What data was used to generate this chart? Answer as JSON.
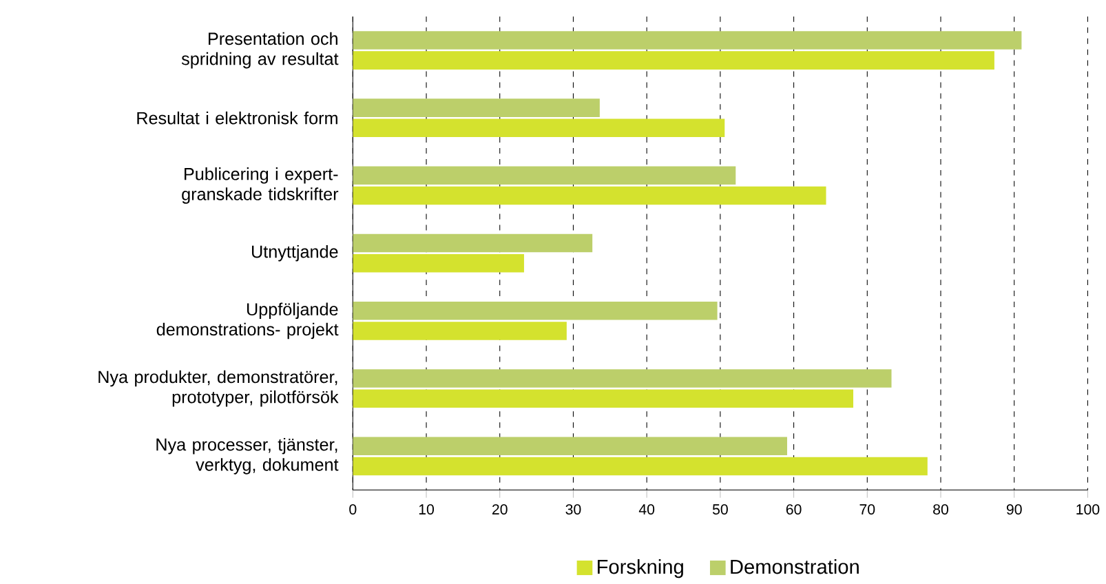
{
  "chart_data": {
    "type": "bar",
    "orientation": "horizontal",
    "categories": [
      "Presentation och spridning av resultat",
      "Resultat i elektronisk form",
      "Publicering i expert-granskade tidskrifter",
      "Utnyttjande",
      "Uppföljande demonstrations- projekt",
      "Nya produkter, demonstratörer, prototyper, pilotförsök",
      "Nya processer, tjänster, verktyg, dokument"
    ],
    "series": [
      {
        "name": "Forskning",
        "color": "#d4e22e",
        "values": [
          87.3,
          50.6,
          64.4,
          23.3,
          29.1,
          68.1,
          78.2
        ]
      },
      {
        "name": "Demonstration",
        "color": "#bccf6a",
        "values": [
          91.0,
          33.6,
          52.1,
          32.6,
          49.6,
          73.3,
          59.1
        ]
      }
    ],
    "xlim": [
      0,
      100
    ],
    "xticks": [
      0,
      10,
      20,
      30,
      40,
      50,
      60,
      70,
      80,
      90,
      100
    ],
    "grid": "x",
    "legend": "bottom"
  }
}
